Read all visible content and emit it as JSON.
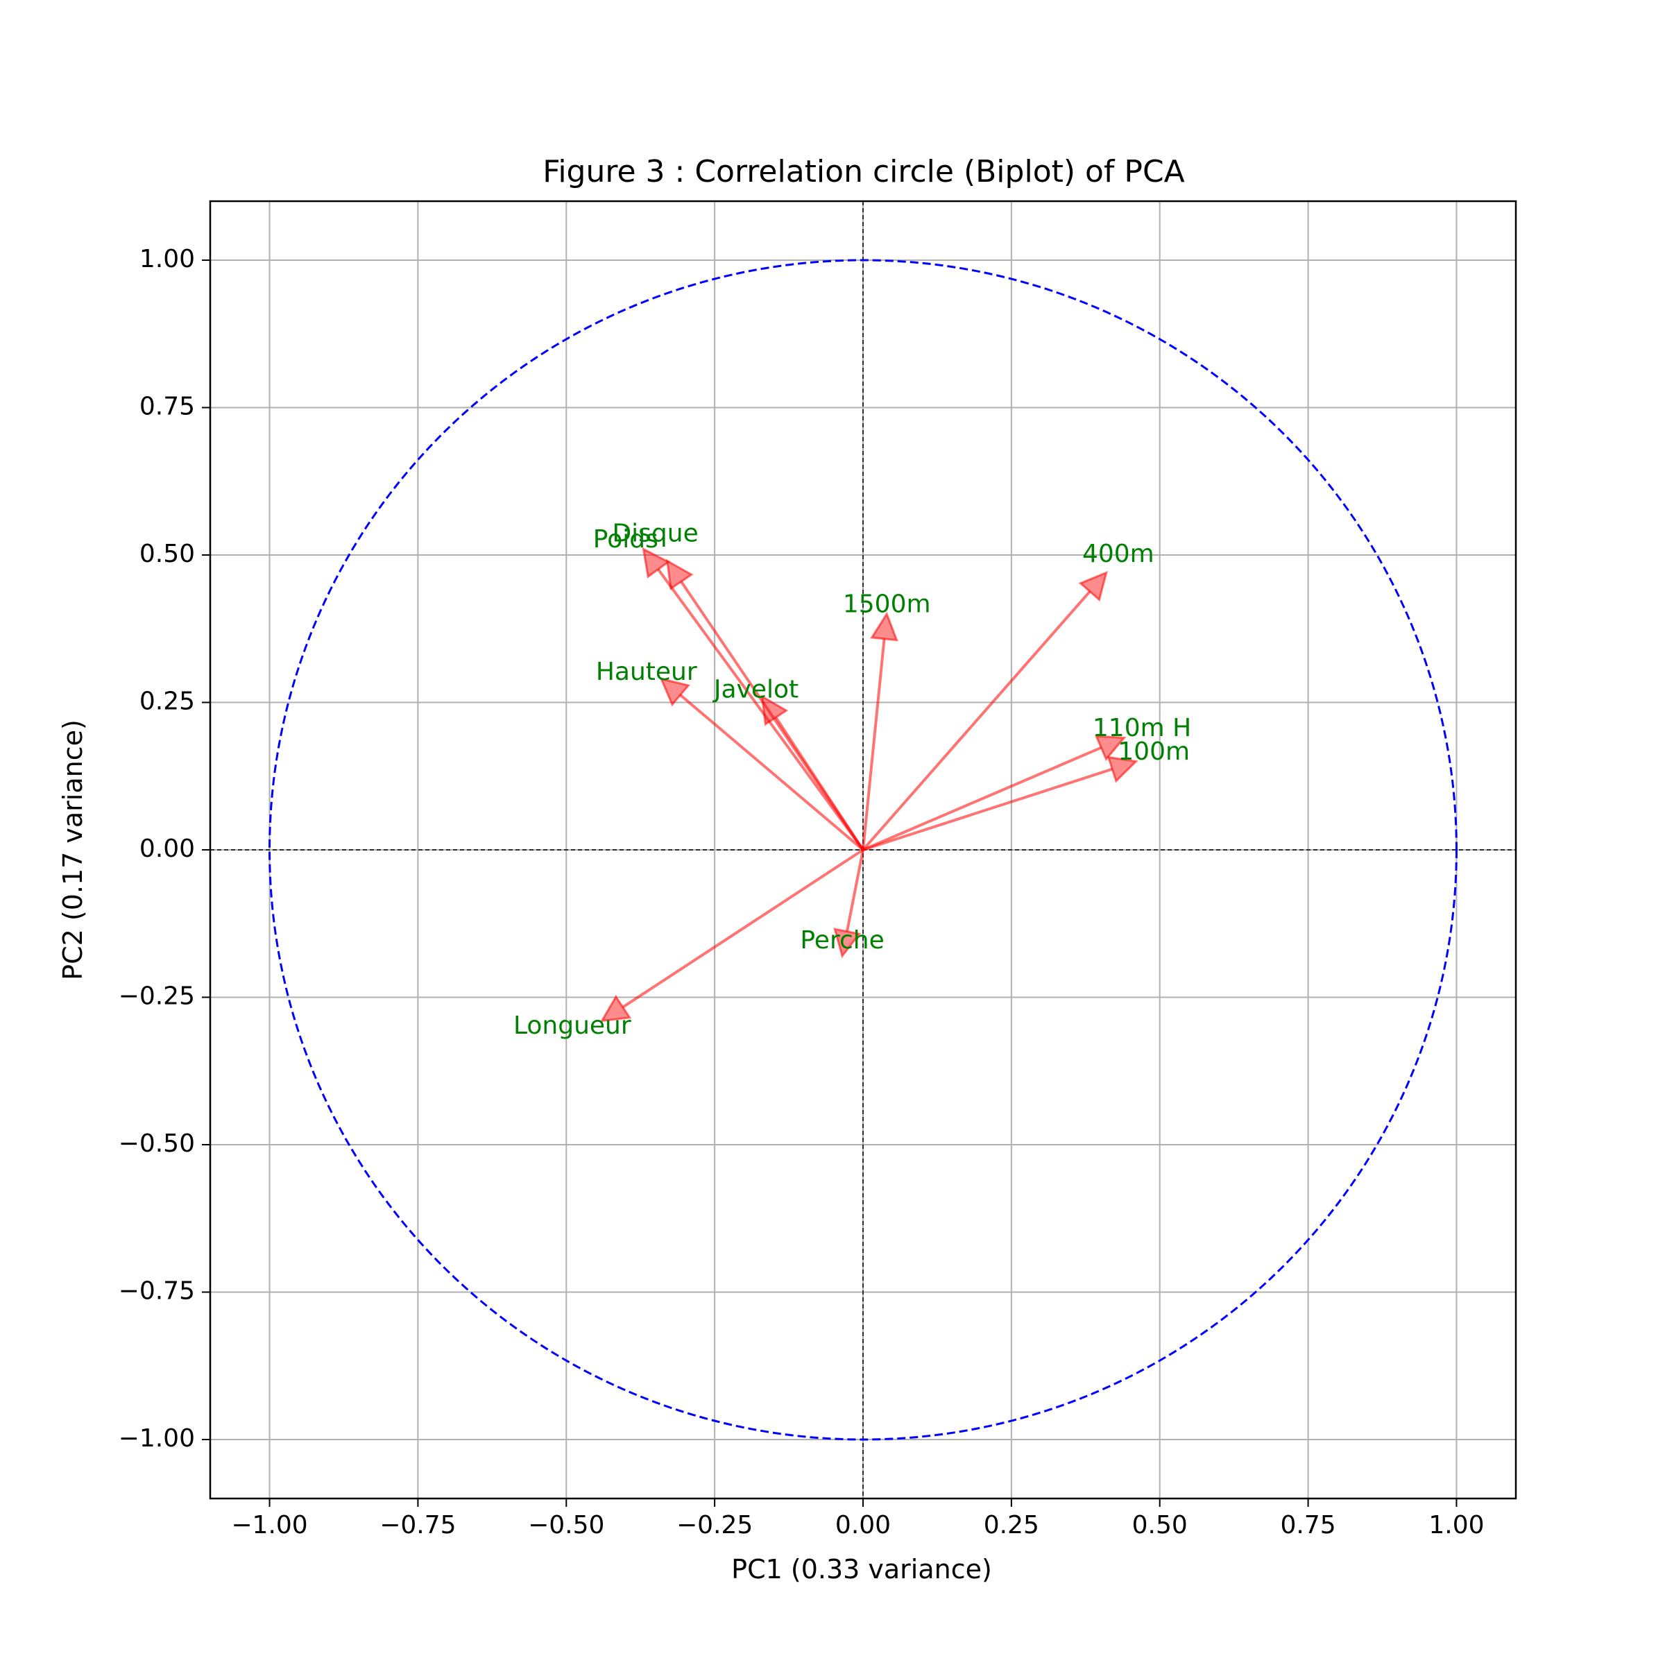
{
  "chart_data": {
    "type": "scatter",
    "title": "Figure 3 : Correlation circle (Biplot) of PCA",
    "xlabel": "PC1 (0.33 variance)",
    "ylabel": "PC2 (0.17 variance)",
    "xlim": [
      -1.1,
      1.1
    ],
    "ylim": [
      -1.1,
      1.1
    ],
    "xticks": [
      -1.0,
      -0.75,
      -0.5,
      -0.25,
      0.0,
      0.25,
      0.5,
      0.75,
      1.0
    ],
    "xtick_labels": [
      "−1.00",
      "−0.75",
      "−0.50",
      "−0.25",
      "0.00",
      "0.25",
      "0.50",
      "0.75",
      "1.00"
    ],
    "yticks": [
      1.0,
      0.75,
      0.5,
      0.25,
      0.0,
      -0.25,
      -0.5,
      -0.75,
      -1.0
    ],
    "ytick_labels": [
      "1.00",
      "0.75",
      "0.50",
      "0.25",
      "0.00",
      "−0.25",
      "−0.50",
      "−0.75",
      "−1.00"
    ],
    "grid": true,
    "unit_circle": {
      "radius": 1.0,
      "color": "#0000ff",
      "style": "dashed"
    },
    "reference_lines": {
      "x": 0.0,
      "y": 0.0,
      "color": "#000000",
      "style": "dashed"
    },
    "arrow_color": "#ff0000",
    "label_color": "#008000",
    "vectors": [
      {
        "name": "100m",
        "x": 0.46,
        "y": 0.15,
        "label_x": 0.49,
        "label_y": 0.165
      },
      {
        "name": "Longueur",
        "x": -0.44,
        "y": -0.29,
        "label_x": -0.49,
        "label_y": -0.3
      },
      {
        "name": "Poids",
        "x": -0.37,
        "y": 0.51,
        "label_x": -0.4,
        "label_y": 0.525
      },
      {
        "name": "Hauteur",
        "x": -0.34,
        "y": 0.29,
        "label_x": -0.365,
        "label_y": 0.3
      },
      {
        "name": "400m",
        "x": 0.41,
        "y": 0.47,
        "label_x": 0.43,
        "label_y": 0.5
      },
      {
        "name": "110m H",
        "x": 0.44,
        "y": 0.19,
        "label_x": 0.47,
        "label_y": 0.205
      },
      {
        "name": "Disque",
        "x": -0.33,
        "y": 0.49,
        "label_x": -0.35,
        "label_y": 0.535
      },
      {
        "name": "Perche",
        "x": -0.035,
        "y": -0.18,
        "label_x": -0.035,
        "label_y": -0.155
      },
      {
        "name": "Javelot",
        "x": -0.17,
        "y": 0.26,
        "label_x": -0.18,
        "label_y": 0.27
      },
      {
        "name": "1500m",
        "x": 0.04,
        "y": 0.4,
        "label_x": 0.04,
        "label_y": 0.415
      }
    ]
  }
}
